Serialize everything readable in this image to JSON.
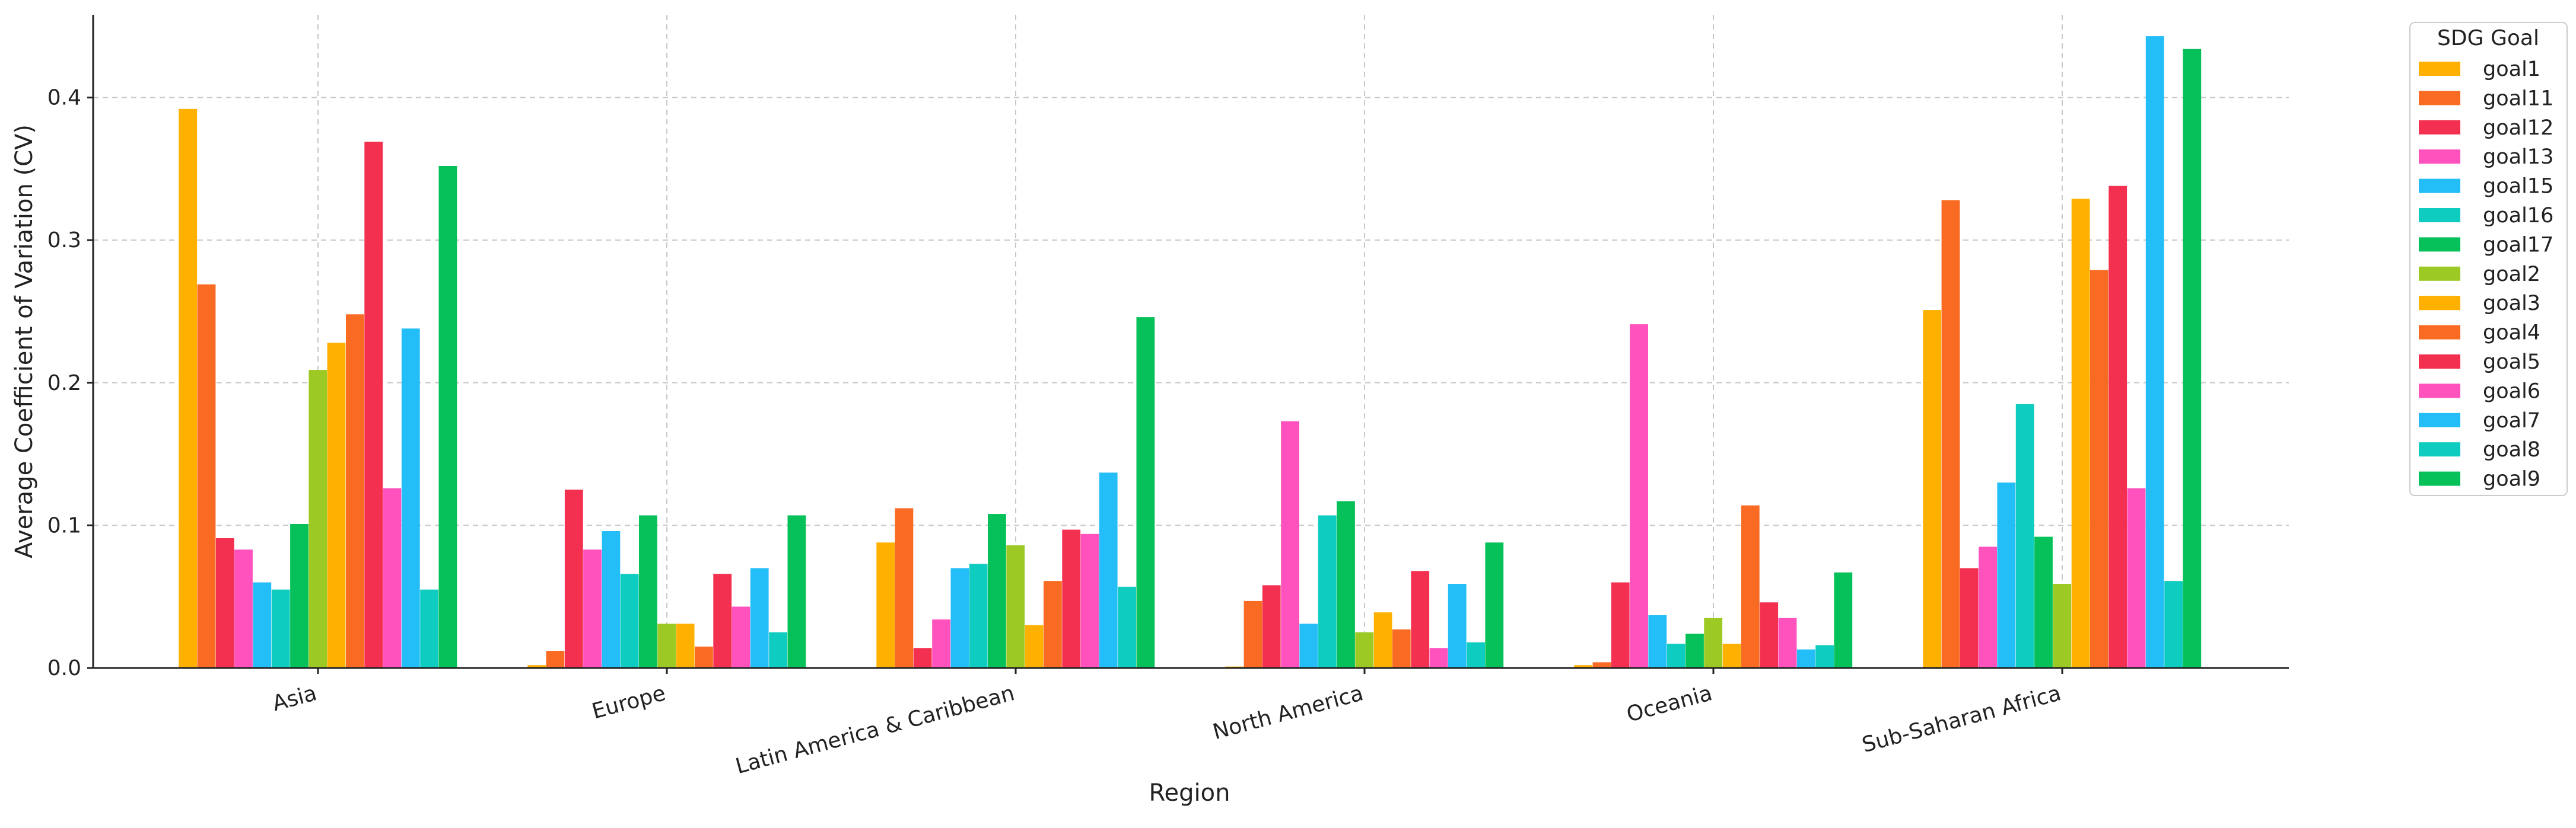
{
  "chart_data": {
    "type": "bar",
    "title": "",
    "xlabel": "Region",
    "ylabel": "Average Coefficient of Variation (CV)",
    "ylim": [
      0,
      0.458
    ],
    "yticks": [
      0.0,
      0.1,
      0.2,
      0.3,
      0.4
    ],
    "ytick_labels": [
      "0.0",
      "0.1",
      "0.2",
      "0.3",
      "0.4"
    ],
    "grid": true,
    "legend_title": "SDG Goal",
    "legend_position": "outside-right",
    "categories": [
      "Asia",
      "Europe",
      "Latin America & Caribbean",
      "North America",
      "Oceania",
      "Sub-Saharan Africa"
    ],
    "series": [
      {
        "name": "goal1",
        "color": "#ffb000",
        "values": [
          0.392,
          0.002,
          0.088,
          0.001,
          0.002,
          0.251
        ]
      },
      {
        "name": "goal11",
        "color": "#f96a22",
        "values": [
          0.269,
          0.012,
          0.112,
          0.047,
          0.004,
          0.328
        ]
      },
      {
        "name": "goal12",
        "color": "#f3304f",
        "values": [
          0.091,
          0.125,
          0.014,
          0.058,
          0.06,
          0.07
        ]
      },
      {
        "name": "goal13",
        "color": "#ff52bd",
        "values": [
          0.083,
          0.083,
          0.034,
          0.173,
          0.241,
          0.085
        ]
      },
      {
        "name": "goal15",
        "color": "#23bdf7",
        "values": [
          0.06,
          0.096,
          0.07,
          0.031,
          0.037,
          0.13
        ]
      },
      {
        "name": "goal16",
        "color": "#0fccc0",
        "values": [
          0.055,
          0.066,
          0.073,
          0.107,
          0.017,
          0.185
        ]
      },
      {
        "name": "goal17",
        "color": "#06c159",
        "values": [
          0.101,
          0.107,
          0.108,
          0.117,
          0.024,
          0.092
        ]
      },
      {
        "name": "goal2",
        "color": "#9cc923",
        "values": [
          0.209,
          0.031,
          0.086,
          0.025,
          0.035,
          0.059
        ]
      },
      {
        "name": "goal3",
        "color": "#ffb000",
        "values": [
          0.228,
          0.031,
          0.03,
          0.039,
          0.017,
          0.329
        ]
      },
      {
        "name": "goal4",
        "color": "#f96a22",
        "values": [
          0.248,
          0.015,
          0.061,
          0.027,
          0.114,
          0.279
        ]
      },
      {
        "name": "goal5",
        "color": "#f3304f",
        "values": [
          0.369,
          0.066,
          0.097,
          0.068,
          0.046,
          0.338
        ]
      },
      {
        "name": "goal6",
        "color": "#ff52bd",
        "values": [
          0.126,
          0.043,
          0.094,
          0.014,
          0.035,
          0.126
        ]
      },
      {
        "name": "goal7",
        "color": "#23bdf7",
        "values": [
          0.238,
          0.07,
          0.137,
          0.059,
          0.013,
          0.443
        ]
      },
      {
        "name": "goal8",
        "color": "#0fccc0",
        "values": [
          0.055,
          0.025,
          0.057,
          0.018,
          0.016,
          0.061
        ]
      },
      {
        "name": "goal9",
        "color": "#06c159",
        "values": [
          0.352,
          0.107,
          0.246,
          0.088,
          0.067,
          0.434
        ]
      }
    ]
  }
}
